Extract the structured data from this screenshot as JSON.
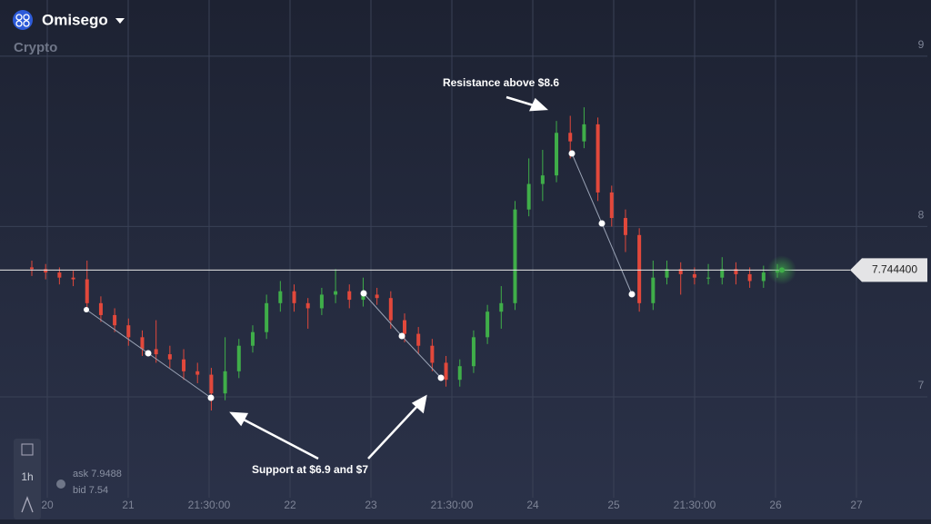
{
  "header": {
    "title": "Omisego",
    "subtitle": "Crypto"
  },
  "chart_data": {
    "type": "candlestick",
    "xticks": [
      "20",
      "21",
      "21:30:00",
      "22",
      "23",
      "21:30:00",
      "24",
      "25",
      "21:30:00",
      "26",
      "27"
    ],
    "ylim": [
      6.28,
      9.33
    ],
    "yticks": [
      7,
      8,
      9
    ],
    "up_color": "#3fae49",
    "down_color": "#e2483b",
    "grid": true,
    "current_price": {
      "value": 7.7444,
      "label": "7.744400"
    },
    "candles": [
      [
        7.76,
        7.8,
        7.71,
        7.75
      ],
      [
        7.75,
        7.78,
        7.69,
        7.73
      ],
      [
        7.73,
        7.76,
        7.66,
        7.7
      ],
      [
        7.7,
        7.74,
        7.65,
        7.69
      ],
      [
        7.69,
        7.8,
        7.5,
        7.55
      ],
      [
        7.55,
        7.59,
        7.44,
        7.48
      ],
      [
        7.48,
        7.52,
        7.38,
        7.42
      ],
      [
        7.42,
        7.46,
        7.3,
        7.35
      ],
      [
        7.35,
        7.39,
        7.24,
        7.28
      ],
      [
        7.28,
        7.45,
        7.2,
        7.25
      ],
      [
        7.25,
        7.3,
        7.17,
        7.22
      ],
      [
        7.22,
        7.28,
        7.1,
        7.15
      ],
      [
        7.15,
        7.2,
        7.08,
        7.13
      ],
      [
        7.13,
        7.17,
        6.92,
        7.02
      ],
      [
        7.02,
        7.35,
        6.98,
        7.15
      ],
      [
        7.15,
        7.34,
        7.11,
        7.3
      ],
      [
        7.3,
        7.42,
        7.26,
        7.38
      ],
      [
        7.38,
        7.6,
        7.34,
        7.55
      ],
      [
        7.55,
        7.68,
        7.5,
        7.62
      ],
      [
        7.62,
        7.66,
        7.5,
        7.55
      ],
      [
        7.55,
        7.58,
        7.4,
        7.52
      ],
      [
        7.52,
        7.64,
        7.48,
        7.6
      ],
      [
        7.6,
        7.75,
        7.55,
        7.62
      ],
      [
        7.62,
        7.66,
        7.52,
        7.57
      ],
      [
        7.57,
        7.7,
        7.53,
        7.6
      ],
      [
        7.6,
        7.64,
        7.54,
        7.58
      ],
      [
        7.58,
        7.62,
        7.4,
        7.45
      ],
      [
        7.45,
        7.49,
        7.32,
        7.37
      ],
      [
        7.37,
        7.41,
        7.25,
        7.3
      ],
      [
        7.3,
        7.34,
        7.15,
        7.2
      ],
      [
        7.2,
        7.24,
        7.06,
        7.1
      ],
      [
        7.1,
        7.22,
        7.06,
        7.18
      ],
      [
        7.18,
        7.39,
        7.14,
        7.35
      ],
      [
        7.35,
        7.54,
        7.31,
        7.5
      ],
      [
        7.5,
        7.65,
        7.4,
        7.55
      ],
      [
        7.55,
        8.15,
        7.51,
        8.1
      ],
      [
        8.1,
        8.4,
        8.06,
        8.25
      ],
      [
        8.25,
        8.45,
        8.15,
        8.3
      ],
      [
        8.3,
        8.62,
        8.26,
        8.55
      ],
      [
        8.55,
        8.65,
        8.4,
        8.5
      ],
      [
        8.5,
        8.7,
        8.46,
        8.6
      ],
      [
        8.6,
        8.64,
        8.15,
        8.2
      ],
      [
        8.2,
        8.24,
        8.0,
        8.05
      ],
      [
        8.05,
        8.1,
        7.85,
        7.95
      ],
      [
        7.95,
        7.99,
        7.5,
        7.55
      ],
      [
        7.55,
        7.8,
        7.51,
        7.7
      ],
      [
        7.7,
        7.8,
        7.66,
        7.75
      ],
      [
        7.75,
        7.79,
        7.6,
        7.72
      ],
      [
        7.72,
        7.76,
        7.66,
        7.7
      ],
      [
        7.7,
        7.78,
        7.66,
        7.7
      ],
      [
        7.7,
        7.82,
        7.66,
        7.75
      ],
      [
        7.75,
        7.79,
        7.66,
        7.72
      ],
      [
        7.72,
        7.76,
        7.64,
        7.68
      ],
      [
        7.68,
        7.77,
        7.64,
        7.73
      ],
      [
        7.73,
        7.78,
        7.7,
        7.74
      ]
    ],
    "annotations": [
      "Resistance above $8.6",
      "Support at $6.9 and $7"
    ]
  },
  "footer": {
    "interval": "1h",
    "ask_label": "ask",
    "ask": 7.9488,
    "bid_label": "bid",
    "bid": 7.54
  }
}
